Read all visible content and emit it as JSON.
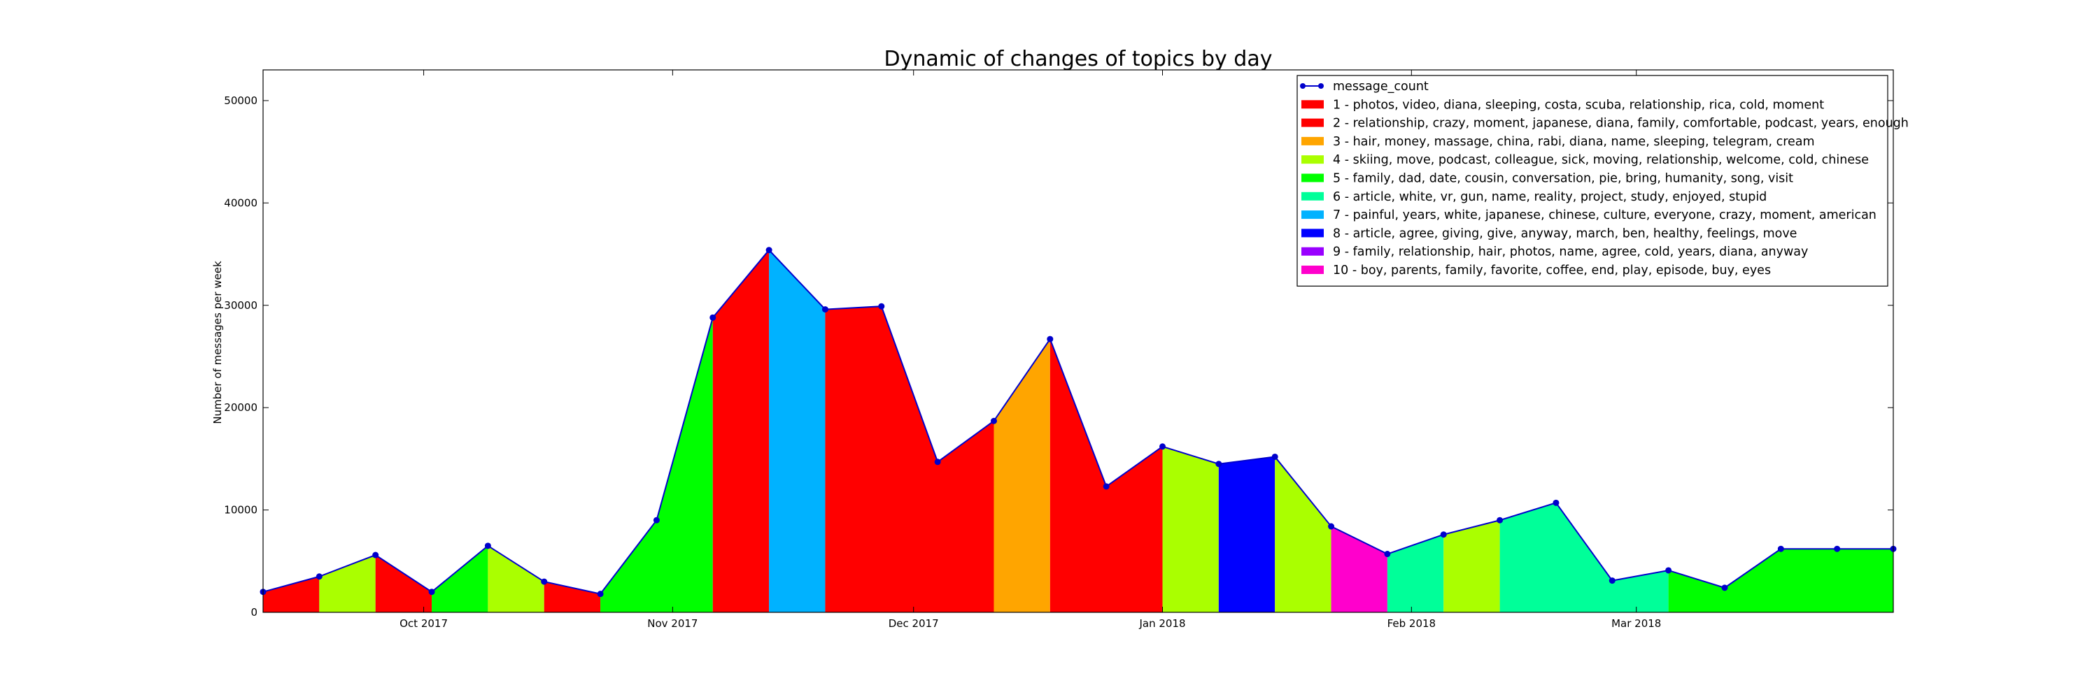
{
  "chart_data": {
    "type": "area",
    "title": "Dynamic of changes of topics by day",
    "xlabel": "",
    "ylabel": "Number of messages per week",
    "ylim": [
      0,
      53000
    ],
    "yticks": [
      0,
      10000,
      20000,
      30000,
      40000,
      50000
    ],
    "ytick_labels": [
      "0",
      "10000",
      "20000",
      "30000",
      "40000",
      "50000"
    ],
    "xlim": [
      "2017-09-11",
      "2018-04-02"
    ],
    "xticks": [
      {
        "label": "Oct 2017",
        "date": "2017-10-01"
      },
      {
        "label": "Nov 2017",
        "date": "2017-11-01"
      },
      {
        "label": "Dec 2017",
        "date": "2017-12-01"
      },
      {
        "label": "Jan 2018",
        "date": "2018-01-01"
      },
      {
        "label": "Feb 2018",
        "date": "2018-02-01"
      },
      {
        "label": "Mar 2018",
        "date": "2018-03-01"
      }
    ],
    "series_line": {
      "name": "message_count",
      "color": "#0000cc",
      "dates": [
        "2017-09-11",
        "2017-09-18",
        "2017-09-25",
        "2017-10-02",
        "2017-10-09",
        "2017-10-16",
        "2017-10-23",
        "2017-10-30",
        "2017-11-06",
        "2017-11-13",
        "2017-11-20",
        "2017-11-27",
        "2017-12-04",
        "2017-12-11",
        "2017-12-18",
        "2017-12-25",
        "2018-01-01",
        "2018-01-08",
        "2018-01-15",
        "2018-01-22",
        "2018-01-29",
        "2018-02-05",
        "2018-02-12",
        "2018-02-19",
        "2018-02-26",
        "2018-03-05",
        "2018-03-12",
        "2018-03-19",
        "2018-03-26",
        "2018-04-02"
      ],
      "values": [
        2000,
        3500,
        5600,
        2000,
        6500,
        3000,
        1800,
        9000,
        28800,
        35400,
        29600,
        29900,
        14700,
        18700,
        26700,
        12300,
        16200,
        14500,
        15200,
        8400,
        5700,
        7600,
        9000,
        10700,
        3100,
        4100,
        2400,
        6200,
        6200,
        6200
      ]
    },
    "topic_segments": [
      {
        "start": "2017-09-11",
        "end": "2017-09-18",
        "topic": "1"
      },
      {
        "start": "2017-09-18",
        "end": "2017-09-25",
        "topic": "4"
      },
      {
        "start": "2017-09-25",
        "end": "2017-10-02",
        "topic": "1"
      },
      {
        "start": "2017-10-02",
        "end": "2017-10-09",
        "topic": "5"
      },
      {
        "start": "2017-10-09",
        "end": "2017-10-16",
        "topic": "4"
      },
      {
        "start": "2017-10-16",
        "end": "2017-10-23",
        "topic": "1"
      },
      {
        "start": "2017-10-23",
        "end": "2017-11-06",
        "topic": "5"
      },
      {
        "start": "2017-11-06",
        "end": "2017-11-13",
        "topic": "1"
      },
      {
        "start": "2017-11-13",
        "end": "2017-11-20",
        "topic": "7"
      },
      {
        "start": "2017-11-20",
        "end": "2017-12-11",
        "topic": "1"
      },
      {
        "start": "2017-12-11",
        "end": "2017-12-18",
        "topic": "3"
      },
      {
        "start": "2017-12-18",
        "end": "2018-01-01",
        "topic": "1"
      },
      {
        "start": "2018-01-01",
        "end": "2018-01-08",
        "topic": "4"
      },
      {
        "start": "2018-01-08",
        "end": "2018-01-15",
        "topic": "8"
      },
      {
        "start": "2018-01-15",
        "end": "2018-01-22",
        "topic": "4"
      },
      {
        "start": "2018-01-22",
        "end": "2018-01-29",
        "topic": "10"
      },
      {
        "start": "2018-01-29",
        "end": "2018-02-05",
        "topic": "6"
      },
      {
        "start": "2018-02-05",
        "end": "2018-02-12",
        "topic": "4"
      },
      {
        "start": "2018-02-12",
        "end": "2018-03-05",
        "topic": "6"
      },
      {
        "start": "2018-03-05",
        "end": "2018-04-02",
        "topic": "5"
      }
    ],
    "legend": [
      {
        "id": "message_count",
        "label": "message_count",
        "color": "#0000cc",
        "marker": "line"
      },
      {
        "id": "1",
        "label": "1 - photos, video, diana, sleeping, costa, scuba, relationship, rica, cold, moment",
        "color": "#ff0000"
      },
      {
        "id": "2",
        "label": "2 - relationship, crazy, moment, japanese, diana, family, comfortable, podcast, years, enough",
        "color": "#ff0000"
      },
      {
        "id": "3",
        "label": "3 - hair, money, massage, china, rabi, diana, name, sleeping, telegram, cream",
        "color": "#ffa500"
      },
      {
        "id": "4",
        "label": "4 - skiing, move, podcast, colleague, sick, moving, relationship, welcome, cold, chinese",
        "color": "#aaff00"
      },
      {
        "id": "5",
        "label": "5 - family, dad, date, cousin, conversation, pie, bring, humanity, song, visit",
        "color": "#00ff00"
      },
      {
        "id": "6",
        "label": "6 - article, white, vr, gun, name, reality, project, study, enjoyed, stupid",
        "color": "#00ff99"
      },
      {
        "id": "7",
        "label": "7 - painful, years, white, japanese, chinese, culture, everyone, crazy, moment, american",
        "color": "#00b2ff"
      },
      {
        "id": "8",
        "label": "8 - article, agree, giving, give, anyway, march, ben, healthy, feelings, move",
        "color": "#0000ff"
      },
      {
        "id": "9",
        "label": "9 - family, relationship, hair, photos, name, agree, cold, years, diana, anyway",
        "color": "#9900ff"
      },
      {
        "id": "10",
        "label": "10 - boy, parents, family, favorite, coffee, end, play, episode, buy, eyes",
        "color": "#ff00cc"
      }
    ],
    "legend_position": "top-right",
    "grid": false
  }
}
